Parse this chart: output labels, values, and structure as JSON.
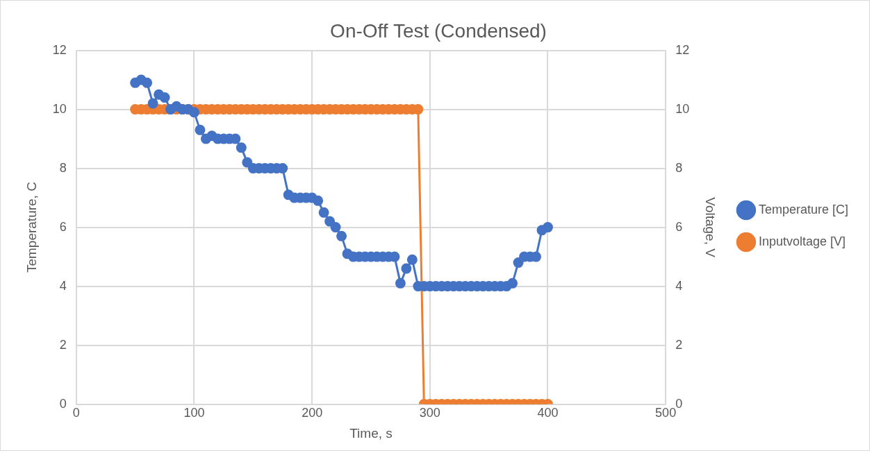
{
  "chart_data": {
    "type": "line",
    "title": "On-Off Test (Condensed)",
    "xlabel": "Time, s",
    "ylabel": "Temperature, C",
    "y2label": "Voltage, V",
    "x": [
      50,
      55,
      60,
      65,
      70,
      75,
      80,
      85,
      90,
      95,
      100,
      105,
      110,
      115,
      120,
      125,
      130,
      135,
      140,
      145,
      150,
      155,
      160,
      165,
      170,
      175,
      180,
      185,
      190,
      195,
      200,
      205,
      210,
      215,
      220,
      225,
      230,
      235,
      240,
      245,
      250,
      255,
      260,
      265,
      270,
      275,
      280,
      285,
      290,
      295,
      300,
      305,
      310,
      315,
      320,
      325,
      330,
      335,
      340,
      345,
      350,
      355,
      360,
      365,
      370,
      375,
      380,
      385,
      390,
      395,
      400
    ],
    "series": [
      {
        "name": "Temperature [C]",
        "color": "#4472c4",
        "values": [
          10.9,
          11.0,
          10.9,
          10.2,
          10.5,
          10.4,
          10.0,
          10.1,
          10.0,
          10.0,
          9.9,
          9.3,
          9.0,
          9.1,
          9.0,
          9.0,
          9.0,
          9.0,
          8.7,
          8.2,
          8.0,
          8.0,
          8.0,
          8.0,
          8.0,
          8.0,
          7.1,
          7.0,
          7.0,
          7.0,
          7.0,
          6.9,
          6.5,
          6.2,
          6.0,
          5.7,
          5.1,
          5.0,
          5.0,
          5.0,
          5.0,
          5.0,
          5.0,
          5.0,
          5.0,
          4.1,
          4.6,
          4.9,
          4.0,
          4.0,
          4.0,
          4.0,
          4.0,
          4.0,
          4.0,
          4.0,
          4.0,
          4.0,
          4.0,
          4.0,
          4.0,
          4.0,
          4.0,
          4.0,
          4.1,
          4.8,
          5.0,
          5.0,
          5.0,
          5.9,
          6.0
        ]
      },
      {
        "name": "Inputvoltage [V]",
        "color": "#ed7d31",
        "axis": "y2",
        "values": [
          10,
          10,
          10,
          10,
          10,
          10,
          10,
          10,
          10,
          10,
          10,
          10,
          10,
          10,
          10,
          10,
          10,
          10,
          10,
          10,
          10,
          10,
          10,
          10,
          10,
          10,
          10,
          10,
          10,
          10,
          10,
          10,
          10,
          10,
          10,
          10,
          10,
          10,
          10,
          10,
          10,
          10,
          10,
          10,
          10,
          10,
          10,
          10,
          10,
          0,
          0,
          0,
          0,
          0,
          0,
          0,
          0,
          0,
          0,
          0,
          0,
          0,
          0,
          0,
          0,
          0,
          0,
          0,
          0,
          0,
          0
        ]
      }
    ],
    "xlim": [
      0,
      500
    ],
    "xticks": [
      0,
      100,
      200,
      300,
      400,
      500
    ],
    "ylim": [
      0,
      12
    ],
    "yticks": [
      0,
      2,
      4,
      6,
      8,
      10,
      12
    ],
    "y2lim": [
      0,
      12
    ],
    "y2ticks": [
      0,
      2,
      4,
      6,
      8,
      10,
      12
    ],
    "grid": true,
    "legend": "right",
    "marker": "circle",
    "line_style": "solid"
  }
}
